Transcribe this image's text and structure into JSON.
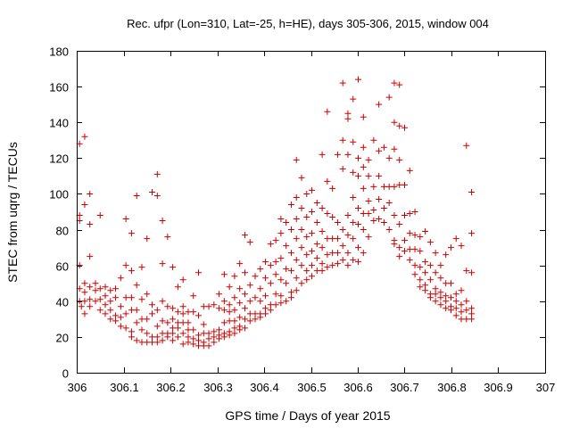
{
  "chart_data": {
    "type": "scatter",
    "title": "Rec. ufpr (Lon=310, Lat=-25, h=HE), days 305-306, 2015, window 004",
    "xlabel": "GPS time / Days of year 2015",
    "ylabel": "STEC from uqrg / TECUs",
    "xlim": [
      306,
      307
    ],
    "ylim": [
      0,
      180
    ],
    "xticks": [
      "306",
      "306.1",
      "306.2",
      "306.3",
      "306.4",
      "306.5",
      "306.6",
      "306.7",
      "306.8",
      "306.9",
      "307"
    ],
    "yticks": [
      "0",
      "20",
      "40",
      "60",
      "80",
      "100",
      "120",
      "140",
      "160",
      "180"
    ],
    "grid": false,
    "marker": "+",
    "color": "#cc0000",
    "points": [
      [
        306.006,
        128
      ],
      [
        306.006,
        88
      ],
      [
        306.006,
        85
      ],
      [
        306.006,
        60
      ],
      [
        306.006,
        47
      ],
      [
        306.006,
        40
      ],
      [
        306.01,
        37
      ],
      [
        306.017,
        132
      ],
      [
        306.017,
        94
      ],
      [
        306.017,
        50
      ],
      [
        306.017,
        45
      ],
      [
        306.017,
        40
      ],
      [
        306.017,
        33
      ],
      [
        306.028,
        100
      ],
      [
        306.028,
        83
      ],
      [
        306.028,
        65
      ],
      [
        306.028,
        48
      ],
      [
        306.028,
        41
      ],
      [
        306.028,
        37
      ],
      [
        306.04,
        50
      ],
      [
        306.04,
        46
      ],
      [
        306.04,
        40
      ],
      [
        306.05,
        88
      ],
      [
        306.05,
        47
      ],
      [
        306.05,
        41
      ],
      [
        306.05,
        35
      ],
      [
        306.061,
        48
      ],
      [
        306.061,
        43
      ],
      [
        306.061,
        38
      ],
      [
        306.061,
        33
      ],
      [
        306.072,
        46
      ],
      [
        306.072,
        40
      ],
      [
        306.072,
        35
      ],
      [
        306.072,
        30
      ],
      [
        306.083,
        47
      ],
      [
        306.083,
        42
      ],
      [
        306.083,
        32
      ],
      [
        306.083,
        29
      ],
      [
        306.094,
        53
      ],
      [
        306.094,
        37
      ],
      [
        306.094,
        31
      ],
      [
        306.094,
        26
      ],
      [
        306.105,
        86
      ],
      [
        306.105,
        60
      ],
      [
        306.105,
        42
      ],
      [
        306.105,
        33
      ],
      [
        306.105,
        25
      ],
      [
        306.117,
        78
      ],
      [
        306.117,
        57
      ],
      [
        306.117,
        42
      ],
      [
        306.117,
        35
      ],
      [
        306.117,
        23
      ],
      [
        306.117,
        20
      ],
      [
        306.128,
        99
      ],
      [
        306.128,
        49
      ],
      [
        306.128,
        35
      ],
      [
        306.128,
        28
      ],
      [
        306.128,
        18
      ],
      [
        306.139,
        59
      ],
      [
        306.139,
        41
      ],
      [
        306.139,
        30
      ],
      [
        306.139,
        24
      ],
      [
        306.139,
        17
      ],
      [
        306.15,
        75
      ],
      [
        306.15,
        44
      ],
      [
        306.15,
        30
      ],
      [
        306.15,
        22
      ],
      [
        306.15,
        17
      ],
      [
        306.161,
        101
      ],
      [
        306.161,
        38
      ],
      [
        306.161,
        33
      ],
      [
        306.161,
        20
      ],
      [
        306.161,
        17
      ],
      [
        306.172,
        111
      ],
      [
        306.172,
        99
      ],
      [
        306.172,
        35
      ],
      [
        306.172,
        26
      ],
      [
        306.172,
        20
      ],
      [
        306.172,
        17
      ],
      [
        306.183,
        85
      ],
      [
        306.183,
        61
      ],
      [
        306.183,
        40
      ],
      [
        306.183,
        29
      ],
      [
        306.183,
        22
      ],
      [
        306.183,
        18
      ],
      [
        306.194,
        76
      ],
      [
        306.194,
        37
      ],
      [
        306.194,
        28
      ],
      [
        306.194,
        22
      ],
      [
        306.194,
        20
      ],
      [
        306.205,
        59
      ],
      [
        306.205,
        36
      ],
      [
        306.205,
        30
      ],
      [
        306.205,
        25
      ],
      [
        306.205,
        22
      ],
      [
        306.205,
        18
      ],
      [
        306.216,
        48
      ],
      [
        306.216,
        34
      ],
      [
        306.216,
        28
      ],
      [
        306.216,
        25
      ],
      [
        306.216,
        20
      ],
      [
        306.227,
        52
      ],
      [
        306.227,
        37
      ],
      [
        306.227,
        33
      ],
      [
        306.227,
        28
      ],
      [
        306.227,
        22
      ],
      [
        306.227,
        16
      ],
      [
        306.238,
        34
      ],
      [
        306.238,
        28
      ],
      [
        306.238,
        24
      ],
      [
        306.238,
        20
      ],
      [
        306.238,
        17
      ],
      [
        306.249,
        43
      ],
      [
        306.249,
        34
      ],
      [
        306.249,
        24
      ],
      [
        306.249,
        19
      ],
      [
        306.249,
        16
      ],
      [
        306.26,
        56
      ],
      [
        306.26,
        32
      ],
      [
        306.26,
        21
      ],
      [
        306.26,
        18
      ],
      [
        306.26,
        15
      ],
      [
        306.271,
        37
      ],
      [
        306.271,
        27
      ],
      [
        306.271,
        22
      ],
      [
        306.271,
        17
      ],
      [
        306.271,
        15
      ],
      [
        306.282,
        37
      ],
      [
        306.282,
        22
      ],
      [
        306.282,
        19
      ],
      [
        306.282,
        15
      ],
      [
        306.293,
        38
      ],
      [
        306.293,
        23
      ],
      [
        306.293,
        20
      ],
      [
        306.293,
        17
      ],
      [
        306.304,
        44
      ],
      [
        306.304,
        36
      ],
      [
        306.304,
        24
      ],
      [
        306.304,
        21
      ],
      [
        306.304,
        19
      ],
      [
        306.315,
        55
      ],
      [
        306.315,
        40
      ],
      [
        306.315,
        35
      ],
      [
        306.315,
        28
      ],
      [
        306.315,
        22
      ],
      [
        306.315,
        20
      ],
      [
        306.326,
        48
      ],
      [
        306.326,
        38
      ],
      [
        306.326,
        34
      ],
      [
        306.326,
        29
      ],
      [
        306.326,
        23
      ],
      [
        306.326,
        21
      ],
      [
        306.337,
        54
      ],
      [
        306.337,
        42
      ],
      [
        306.337,
        35
      ],
      [
        306.337,
        29
      ],
      [
        306.337,
        25
      ],
      [
        306.337,
        22
      ],
      [
        306.348,
        61
      ],
      [
        306.348,
        47
      ],
      [
        306.348,
        39
      ],
      [
        306.348,
        31
      ],
      [
        306.348,
        26
      ],
      [
        306.348,
        24
      ],
      [
        306.359,
        77
      ],
      [
        306.359,
        56
      ],
      [
        306.359,
        44
      ],
      [
        306.359,
        36
      ],
      [
        306.359,
        30
      ],
      [
        306.359,
        25
      ],
      [
        306.37,
        73
      ],
      [
        306.37,
        49
      ],
      [
        306.37,
        40
      ],
      [
        306.37,
        33
      ],
      [
        306.37,
        29
      ],
      [
        306.381,
        54
      ],
      [
        306.381,
        42
      ],
      [
        306.381,
        33
      ],
      [
        306.381,
        30
      ],
      [
        306.392,
        58
      ],
      [
        306.392,
        47
      ],
      [
        306.392,
        40
      ],
      [
        306.392,
        33
      ],
      [
        306.392,
        31
      ],
      [
        306.403,
        62
      ],
      [
        306.403,
        53
      ],
      [
        306.403,
        43
      ],
      [
        306.403,
        36
      ],
      [
        306.403,
        33
      ],
      [
        306.414,
        72
      ],
      [
        306.414,
        60
      ],
      [
        306.414,
        50
      ],
      [
        306.414,
        38
      ],
      [
        306.414,
        35
      ],
      [
        306.425,
        74
      ],
      [
        306.425,
        62
      ],
      [
        306.425,
        55
      ],
      [
        306.425,
        44
      ],
      [
        306.425,
        38
      ],
      [
        306.436,
        86
      ],
      [
        306.436,
        78
      ],
      [
        306.436,
        64
      ],
      [
        306.436,
        52
      ],
      [
        306.436,
        43
      ],
      [
        306.436,
        39
      ],
      [
        306.447,
        84
      ],
      [
        306.447,
        71
      ],
      [
        306.447,
        58
      ],
      [
        306.447,
        50
      ],
      [
        306.447,
        40
      ],
      [
        306.458,
        94
      ],
      [
        306.458,
        80
      ],
      [
        306.458,
        67
      ],
      [
        306.458,
        57
      ],
      [
        306.458,
        45
      ],
      [
        306.458,
        42
      ],
      [
        306.469,
        119
      ],
      [
        306.469,
        98
      ],
      [
        306.469,
        86
      ],
      [
        306.469,
        75
      ],
      [
        306.469,
        63
      ],
      [
        306.469,
        53
      ],
      [
        306.469,
        46
      ],
      [
        306.48,
        109
      ],
      [
        306.48,
        92
      ],
      [
        306.48,
        80
      ],
      [
        306.48,
        70
      ],
      [
        306.48,
        60
      ],
      [
        306.48,
        50
      ],
      [
        306.491,
        100
      ],
      [
        306.491,
        87
      ],
      [
        306.491,
        76
      ],
      [
        306.491,
        66
      ],
      [
        306.491,
        57
      ],
      [
        306.491,
        52
      ],
      [
        306.502,
        102
      ],
      [
        306.502,
        90
      ],
      [
        306.502,
        78
      ],
      [
        306.502,
        68
      ],
      [
        306.502,
        60
      ],
      [
        306.502,
        54
      ],
      [
        306.513,
        95
      ],
      [
        306.513,
        84
      ],
      [
        306.513,
        72
      ],
      [
        306.513,
        64
      ],
      [
        306.513,
        57
      ],
      [
        306.524,
        122
      ],
      [
        306.524,
        92
      ],
      [
        306.524,
        79
      ],
      [
        306.524,
        70
      ],
      [
        306.524,
        61
      ],
      [
        306.524,
        57
      ],
      [
        306.535,
        146
      ],
      [
        306.535,
        107
      ],
      [
        306.535,
        89
      ],
      [
        306.535,
        75
      ],
      [
        306.535,
        66
      ],
      [
        306.535,
        59
      ],
      [
        306.546,
        103
      ],
      [
        306.546,
        87
      ],
      [
        306.546,
        75
      ],
      [
        306.546,
        67
      ],
      [
        306.546,
        60
      ],
      [
        306.557,
        122
      ],
      [
        306.557,
        84
      ],
      [
        306.557,
        75
      ],
      [
        306.557,
        67
      ],
      [
        306.557,
        61
      ],
      [
        306.568,
        162
      ],
      [
        306.568,
        130
      ],
      [
        306.568,
        114
      ],
      [
        306.568,
        80
      ],
      [
        306.568,
        71
      ],
      [
        306.568,
        63
      ],
      [
        306.579,
        145
      ],
      [
        306.579,
        142
      ],
      [
        306.579,
        122
      ],
      [
        306.579,
        88
      ],
      [
        306.579,
        77
      ],
      [
        306.579,
        67
      ],
      [
        306.579,
        60
      ],
      [
        306.59,
        153
      ],
      [
        306.59,
        129
      ],
      [
        306.59,
        112
      ],
      [
        306.59,
        98
      ],
      [
        306.59,
        84
      ],
      [
        306.59,
        75
      ],
      [
        306.59,
        63
      ],
      [
        306.601,
        164
      ],
      [
        306.601,
        120
      ],
      [
        306.601,
        110
      ],
      [
        306.601,
        92
      ],
      [
        306.601,
        83
      ],
      [
        306.601,
        70
      ],
      [
        306.601,
        62
      ],
      [
        306.612,
        143
      ],
      [
        306.612,
        126
      ],
      [
        306.612,
        115
      ],
      [
        306.612,
        103
      ],
      [
        306.612,
        89
      ],
      [
        306.612,
        80
      ],
      [
        306.612,
        67
      ],
      [
        306.623,
        119
      ],
      [
        306.623,
        110
      ],
      [
        306.623,
        96
      ],
      [
        306.623,
        89
      ],
      [
        306.623,
        76
      ],
      [
        306.634,
        130
      ],
      [
        306.634,
        104
      ],
      [
        306.634,
        91
      ],
      [
        306.634,
        85
      ],
      [
        306.645,
        150
      ],
      [
        306.645,
        124
      ],
      [
        306.645,
        110
      ],
      [
        306.645,
        97
      ],
      [
        306.645,
        86
      ],
      [
        306.656,
        126
      ],
      [
        306.656,
        104
      ],
      [
        306.656,
        92
      ],
      [
        306.656,
        84
      ],
      [
        306.667,
        154
      ],
      [
        306.667,
        120
      ],
      [
        306.667,
        104
      ],
      [
        306.667,
        95
      ],
      [
        306.667,
        80
      ],
      [
        306.678,
        162
      ],
      [
        306.678,
        140
      ],
      [
        306.678,
        125
      ],
      [
        306.678,
        104
      ],
      [
        306.678,
        88
      ],
      [
        306.678,
        74
      ],
      [
        306.678,
        72
      ],
      [
        306.689,
        161
      ],
      [
        306.689,
        138
      ],
      [
        306.689,
        119
      ],
      [
        306.689,
        105
      ],
      [
        306.689,
        83
      ],
      [
        306.689,
        70
      ],
      [
        306.689,
        65
      ],
      [
        306.7,
        137
      ],
      [
        306.7,
        105
      ],
      [
        306.7,
        88
      ],
      [
        306.7,
        74
      ],
      [
        306.7,
        68
      ],
      [
        306.711,
        113
      ],
      [
        306.711,
        89
      ],
      [
        306.711,
        78
      ],
      [
        306.711,
        69
      ],
      [
        306.711,
        63
      ],
      [
        306.722,
        90
      ],
      [
        306.722,
        77
      ],
      [
        306.722,
        69
      ],
      [
        306.722,
        60
      ],
      [
        306.722,
        55
      ],
      [
        306.733,
        76
      ],
      [
        306.733,
        68
      ],
      [
        306.733,
        59
      ],
      [
        306.733,
        52
      ],
      [
        306.733,
        48
      ],
      [
        306.744,
        79
      ],
      [
        306.744,
        62
      ],
      [
        306.744,
        56
      ],
      [
        306.744,
        49
      ],
      [
        306.744,
        46
      ],
      [
        306.755,
        73
      ],
      [
        306.755,
        60
      ],
      [
        306.755,
        52
      ],
      [
        306.755,
        44
      ],
      [
        306.755,
        42
      ],
      [
        306.766,
        67
      ],
      [
        306.766,
        56
      ],
      [
        306.766,
        47
      ],
      [
        306.766,
        44
      ],
      [
        306.766,
        40
      ],
      [
        306.777,
        60
      ],
      [
        306.777,
        53
      ],
      [
        306.777,
        45
      ],
      [
        306.777,
        42
      ],
      [
        306.777,
        38
      ],
      [
        306.788,
        66
      ],
      [
        306.788,
        50
      ],
      [
        306.788,
        43
      ],
      [
        306.788,
        40
      ],
      [
        306.788,
        36
      ],
      [
        306.799,
        70
      ],
      [
        306.799,
        50
      ],
      [
        306.799,
        42
      ],
      [
        306.799,
        37
      ],
      [
        306.799,
        35
      ],
      [
        306.81,
        75
      ],
      [
        306.81,
        44
      ],
      [
        306.81,
        40
      ],
      [
        306.81,
        36
      ],
      [
        306.81,
        32
      ],
      [
        306.821,
        71
      ],
      [
        306.821,
        46
      ],
      [
        306.821,
        38
      ],
      [
        306.821,
        34
      ],
      [
        306.821,
        30
      ],
      [
        306.832,
        127
      ],
      [
        306.832,
        57
      ],
      [
        306.832,
        40
      ],
      [
        306.832,
        35
      ],
      [
        306.832,
        30
      ],
      [
        306.843,
        101
      ],
      [
        306.843,
        78
      ],
      [
        306.843,
        56
      ],
      [
        306.843,
        36
      ],
      [
        306.843,
        33
      ],
      [
        306.843,
        30
      ]
    ]
  }
}
